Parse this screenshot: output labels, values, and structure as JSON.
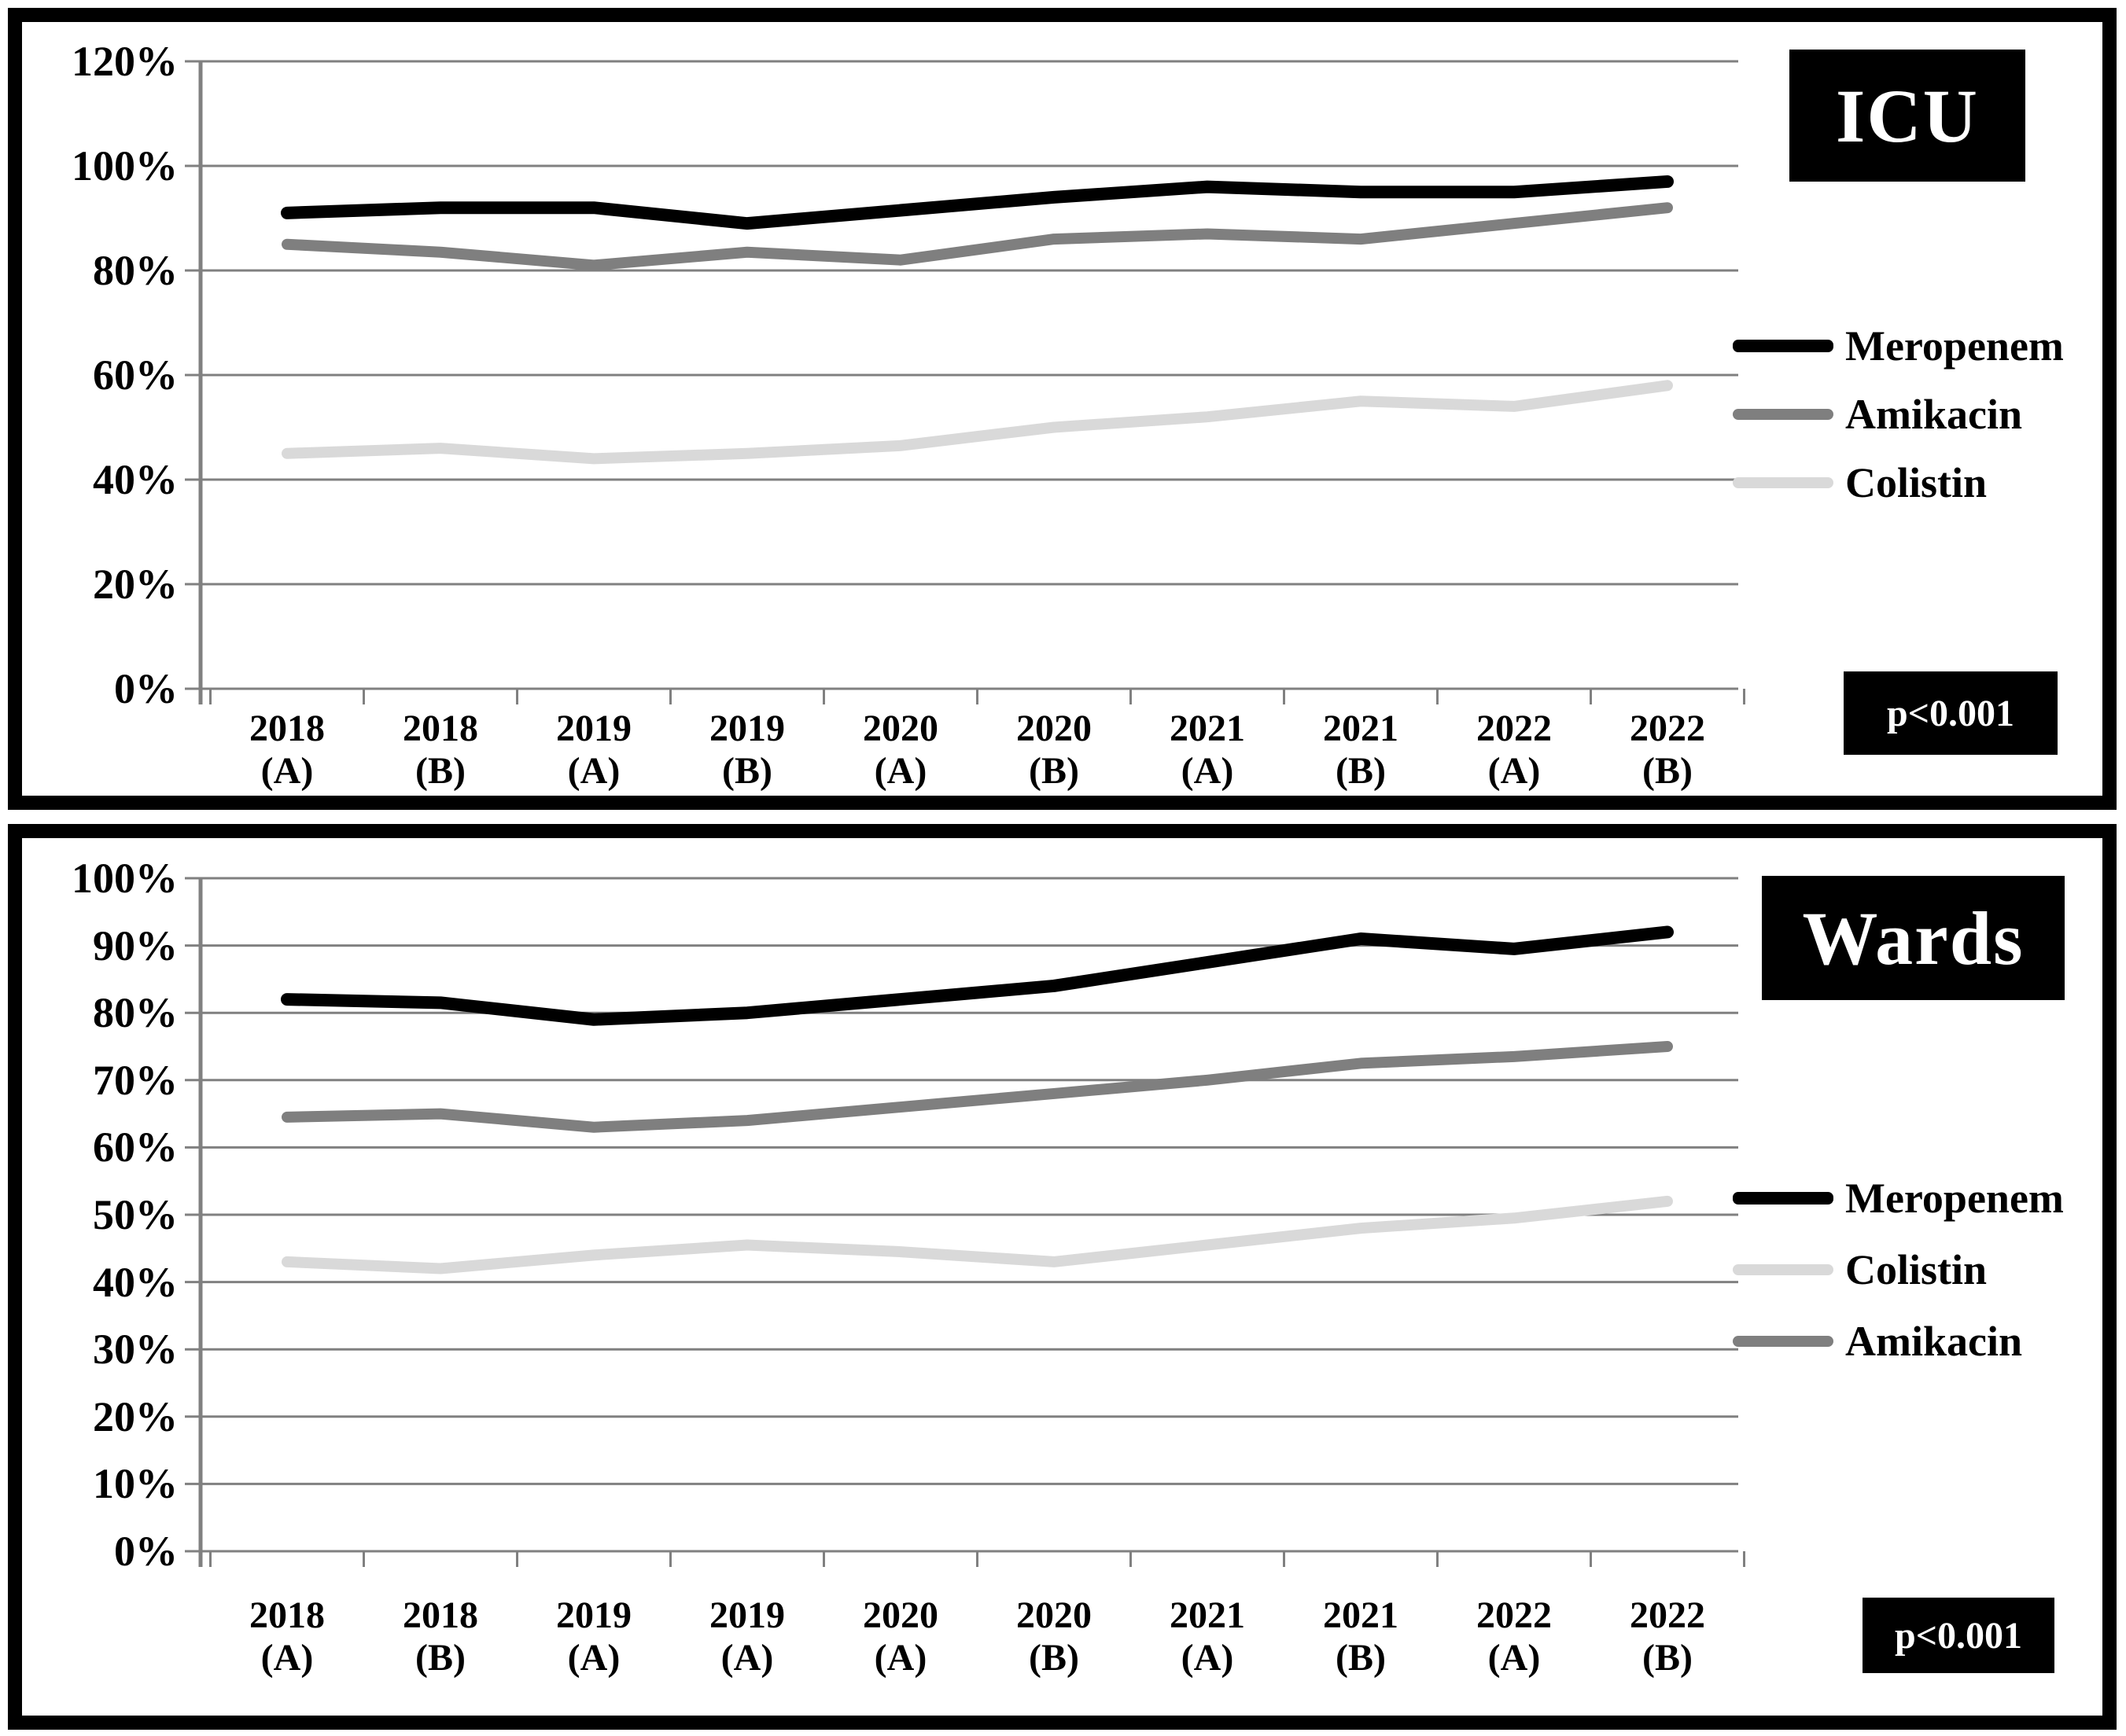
{
  "colors": {
    "meropenem": "#000000",
    "amikacin": "#7f7f7f",
    "colistin": "#d9d9d9",
    "gridline": "#808080",
    "panel_border": "#000000",
    "badge_bg": "#000000",
    "badge_fg": "#ffffff"
  },
  "chart_data": [
    {
      "type": "line",
      "title": "ICU",
      "p_value": "p<0.001",
      "ylabel": "",
      "xlabel": "",
      "ylim": [
        0,
        120
      ],
      "ystep": 20,
      "grid": true,
      "legend_position": "right",
      "ytick_labels": [
        "120%",
        "100%",
        "80%",
        "60%",
        "40%",
        "20%",
        "0%"
      ],
      "categories": [
        [
          "2018",
          "(A)"
        ],
        [
          "2018",
          "(B)"
        ],
        [
          "2019",
          "(A)"
        ],
        [
          "2019",
          "(B)"
        ],
        [
          "2020",
          "(A)"
        ],
        [
          "2020",
          "(B)"
        ],
        [
          "2021",
          "(A)"
        ],
        [
          "2021",
          "(B)"
        ],
        [
          "2022",
          "(A)"
        ],
        [
          "2022",
          "(B)"
        ]
      ],
      "series": [
        {
          "name": "Meropenem",
          "color": "#000000",
          "width": 16,
          "values": [
            91,
            92,
            92,
            89,
            91.5,
            94,
            96,
            95,
            95,
            97
          ]
        },
        {
          "name": "Amikacin",
          "color": "#7f7f7f",
          "width": 14,
          "values": [
            85,
            83.5,
            81,
            83.5,
            82,
            86,
            87,
            86,
            89,
            92
          ]
        },
        {
          "name": "Colistin",
          "color": "#d9d9d9",
          "width": 14,
          "values": [
            45,
            46,
            44,
            45,
            46.5,
            50,
            52,
            55,
            54,
            58
          ]
        }
      ]
    },
    {
      "type": "line",
      "title": "Wards",
      "p_value": "p<0.001",
      "ylabel": "",
      "xlabel": "",
      "ylim": [
        0,
        100
      ],
      "ystep": 10,
      "grid": true,
      "legend_position": "right",
      "ytick_labels": [
        "100%",
        "90%",
        "80%",
        "70%",
        "60%",
        "50%",
        "40%",
        "30%",
        "20%",
        "10%",
        "0%"
      ],
      "categories": [
        [
          "2018",
          "(A)"
        ],
        [
          "2018",
          "(B)"
        ],
        [
          "2019",
          "(A)"
        ],
        [
          "2019",
          "(A)"
        ],
        [
          "2020",
          "(A)"
        ],
        [
          "2020",
          "(B)"
        ],
        [
          "2021",
          "(A)"
        ],
        [
          "2021",
          "(B)"
        ],
        [
          "2022",
          "(A)"
        ],
        [
          "2022",
          "(B)"
        ]
      ],
      "series": [
        {
          "name": "Meropenem",
          "color": "#000000",
          "width": 16,
          "values": [
            82,
            81.5,
            79,
            80,
            82,
            84,
            87.5,
            91,
            89.5,
            92
          ]
        },
        {
          "name": "Colistin",
          "color": "#d9d9d9",
          "width": 14,
          "values": [
            43,
            42,
            44,
            45.5,
            44.5,
            43,
            45.5,
            48,
            49.5,
            52
          ]
        },
        {
          "name": "Amikacin",
          "color": "#7f7f7f",
          "width": 14,
          "values": [
            64.5,
            65,
            63,
            64,
            66,
            68,
            70,
            72.5,
            73.5,
            75
          ]
        }
      ]
    }
  ]
}
